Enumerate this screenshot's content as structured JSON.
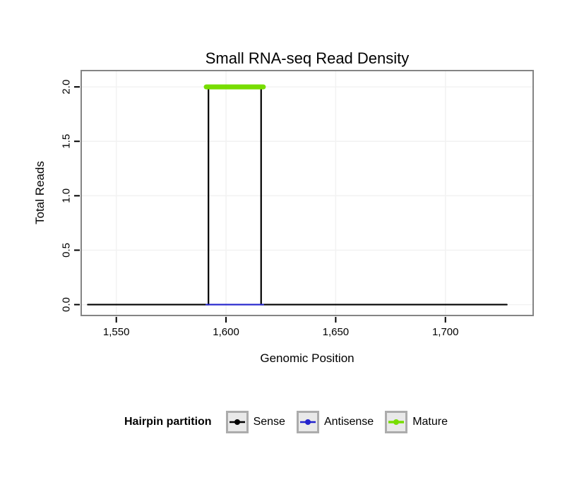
{
  "chart_data": {
    "type": "line",
    "title": "Small RNA-seq Read Density",
    "xlabel": "Genomic Position",
    "ylabel": "Total Reads",
    "xlim": [
      1534,
      1740
    ],
    "ylim": [
      -0.1,
      2.15
    ],
    "x_ticks": [
      1550,
      1600,
      1650,
      1700
    ],
    "x_tick_labels": [
      "1,550",
      "1,600",
      "1,650",
      "1,700"
    ],
    "y_ticks": [
      0.0,
      0.5,
      1.0,
      1.5,
      2.0
    ],
    "y_tick_labels": [
      "0.0",
      "0.5",
      "1.0",
      "1.5",
      "2.0"
    ],
    "grid": true,
    "grid_color": "#f2f2f2",
    "panel_border_color": "#848484",
    "legend_position": "bottom",
    "legend_title": "Hairpin partition",
    "series": [
      {
        "name": "Sense",
        "color": "#000000",
        "linewidth": 2.2,
        "points": [
          [
            1537,
            0
          ],
          [
            1592,
            0
          ],
          [
            1592,
            2
          ],
          [
            1616,
            2
          ],
          [
            1616,
            0
          ],
          [
            1728,
            0
          ]
        ]
      },
      {
        "name": "Antisense",
        "color": "#2222cc",
        "linewidth": 2.2,
        "points": [
          [
            1591,
            0
          ],
          [
            1617,
            0
          ]
        ]
      },
      {
        "name": "Mature",
        "color": "#77dd00",
        "linewidth": 7,
        "points": [
          [
            1591,
            2
          ],
          [
            1617,
            2
          ]
        ]
      }
    ]
  }
}
